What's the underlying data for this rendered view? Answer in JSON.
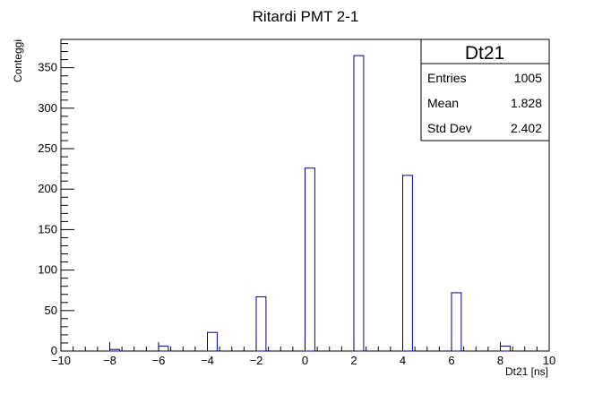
{
  "chart_data": {
    "type": "bar",
    "title": "Ritardi PMT 2-1",
    "xlabel": "Dt21 [ns]",
    "ylabel": "Conteggi",
    "xlim": [
      -10,
      10
    ],
    "ylim": [
      0,
      385
    ],
    "xticks": [
      -10,
      -8,
      -6,
      -4,
      -2,
      0,
      2,
      4,
      6,
      8,
      10
    ],
    "xtick_labels": [
      "−10",
      "−8",
      "−6",
      "−4",
      "−2",
      "0",
      "2",
      "4",
      "6",
      "8",
      "10"
    ],
    "yticks": [
      0,
      50,
      100,
      150,
      200,
      250,
      300,
      350
    ],
    "ytick_labels": [
      "0",
      "50",
      "100",
      "150",
      "200",
      "250",
      "300",
      "350"
    ],
    "bin_width": 0.4,
    "bins": [
      {
        "x_low": -8.0,
        "count": 2
      },
      {
        "x_low": -6.0,
        "count": 6
      },
      {
        "x_low": -4.0,
        "count": 23
      },
      {
        "x_low": -2.0,
        "count": 67
      },
      {
        "x_low": 0.0,
        "count": 226
      },
      {
        "x_low": 2.0,
        "count": 365
      },
      {
        "x_low": 4.0,
        "count": 217
      },
      {
        "x_low": 6.0,
        "count": 72
      },
      {
        "x_low": 8.0,
        "count": 6
      }
    ],
    "line_color": "#00008b",
    "grid": false
  },
  "stats_box": {
    "name": "Dt21",
    "rows": [
      {
        "label": "Entries",
        "value": "1005"
      },
      {
        "label": "Mean",
        "value": "1.828"
      },
      {
        "label": "Std Dev",
        "value": "2.402"
      }
    ]
  }
}
